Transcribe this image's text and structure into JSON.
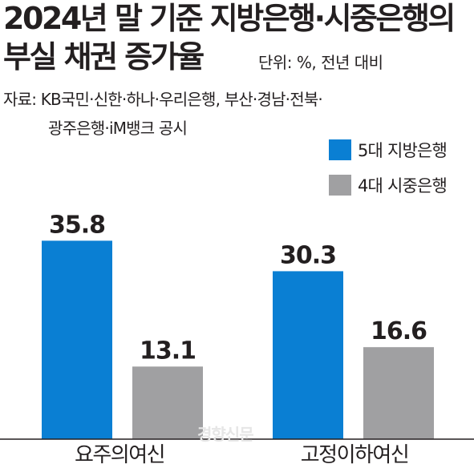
{
  "header": {
    "title_line1": "2024년 말 기준 지방은행·시중은행의",
    "title_line2": "부실 채권 증가율",
    "unit": "단위: %, 전년 대비",
    "source_line1": "자료: KB국민·신한·하나·우리은행, 부산·경남·전북·",
    "source_line2": "광주은행·iM뱅크 공시",
    "watermark": "경향신문"
  },
  "colors": {
    "series1": "#0a7fd3",
    "series2": "#a0a0a2",
    "text": "#231f20",
    "axis": "#231f20"
  },
  "chart_data": {
    "type": "bar",
    "title": "2024년 말 기준 지방은행·시중은행의 부실 채권 증가율",
    "unit": "단위: %, 전년 대비",
    "categories": [
      "요주의여신",
      "고정이하여신"
    ],
    "series": [
      {
        "name": "5대 지방은행",
        "values": [
          35.8,
          30.3
        ]
      },
      {
        "name": "4대 시중은행",
        "values": [
          13.1,
          16.6
        ]
      }
    ],
    "ylim": [
      0,
      48
    ],
    "grid": false,
    "legend": "top-right"
  }
}
